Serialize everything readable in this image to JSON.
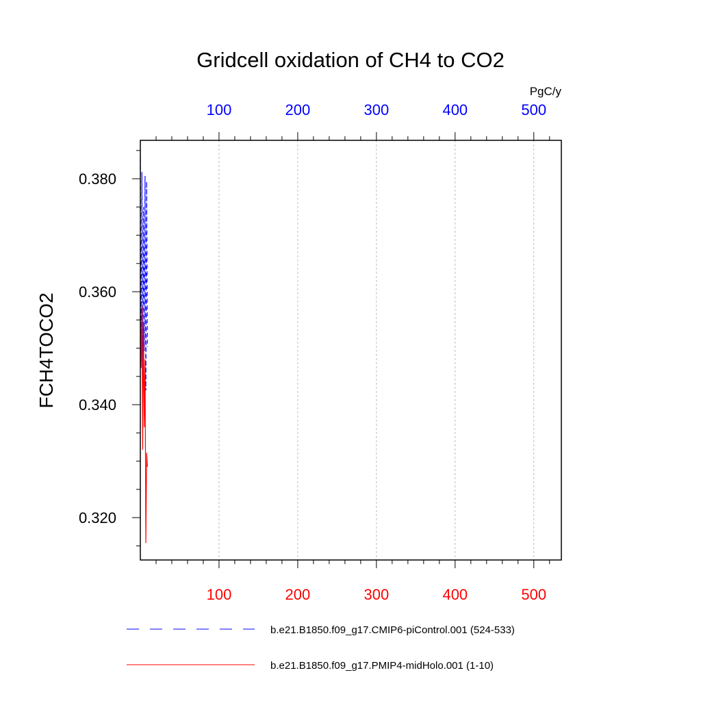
{
  "chart_data": {
    "type": "line",
    "title": "Gridcell oxidation of CH4 to CO2",
    "ylabel": "FCH4TOCO2",
    "top_axis_units": "PgC/y",
    "xlim": [
      0,
      535
    ],
    "ylim": [
      0.3125,
      0.3868
    ],
    "x_ticks": [
      100,
      200,
      300,
      400,
      500
    ],
    "x_tick_labels": [
      "100",
      "200",
      "300",
      "400",
      "500"
    ],
    "y_ticks": [
      0.32,
      0.34,
      0.36,
      0.38
    ],
    "y_tick_labels": [
      "0.320",
      "0.340",
      "0.360",
      "0.380"
    ],
    "x_grid": true,
    "top_axis_color": "#0000ff",
    "bottom_axis_color": "#ff0000",
    "series": [
      {
        "name": "b.e21.B1850.f09_g17.CMIP6-piControl.001 (524-533)",
        "color": "#0000ff",
        "dash": "dashed",
        "x": [
          0,
          1,
          2,
          3,
          4,
          5,
          6,
          7,
          8,
          9
        ],
        "y": [
          0.3835,
          0.3475,
          0.3812,
          0.343,
          0.375,
          0.3495,
          0.3805,
          0.3425,
          0.3795,
          0.3502
        ]
      },
      {
        "name": "b.e21.B1850.f09_g17.PMIP4-midHolo.001 (1-10)",
        "color": "#ff0000",
        "dash": "solid",
        "x": [
          0,
          1,
          2,
          3,
          4,
          5,
          6,
          7,
          8,
          9
        ],
        "y": [
          0.356,
          0.3465,
          0.3575,
          0.332,
          0.3545,
          0.336,
          0.348,
          0.3155,
          0.3315,
          0.329
        ]
      }
    ]
  }
}
